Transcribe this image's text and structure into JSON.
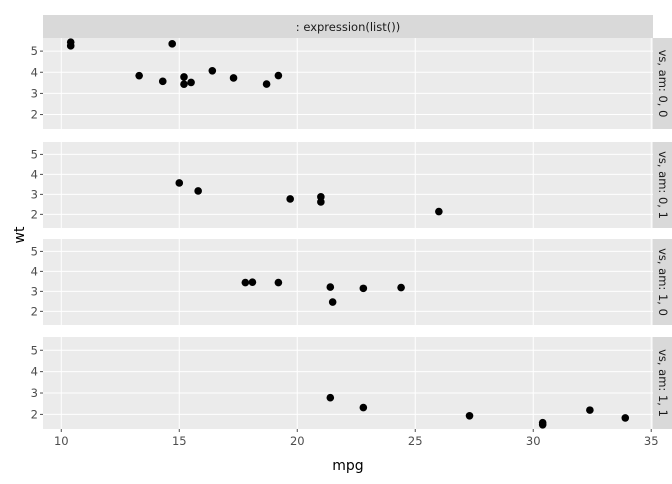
{
  "chart_data": {
    "type": "scatter",
    "title": "",
    "top_strip": ": expression(list())",
    "xlabel": "mpg",
    "ylabel": "wt",
    "xlim": [
      9.225,
      35.075
    ],
    "ylim": [
      1.317,
      5.62
    ],
    "xticks": [
      10,
      15,
      20,
      25,
      30,
      35
    ],
    "yticks": [
      2,
      3,
      4,
      5
    ],
    "grid": true,
    "point_color": "#000000",
    "panel_bg": "#EBEBEB",
    "strip_bg": "#D9D9D9",
    "panels": [
      {
        "label": "vs, am: 0, 0",
        "x": [
          18.7,
          14.3,
          16.4,
          17.3,
          15.2,
          10.4,
          10.4,
          14.7,
          15.5,
          15.2,
          13.3,
          19.2
        ],
        "y": [
          3.44,
          3.57,
          4.07,
          3.73,
          3.78,
          5.25,
          5.424,
          5.345,
          3.52,
          3.435,
          3.84,
          3.845
        ]
      },
      {
        "label": "vs, am: 0, 1",
        "x": [
          21,
          21,
          26,
          15.8,
          19.7,
          15
        ],
        "y": [
          2.62,
          2.875,
          2.14,
          3.17,
          2.77,
          3.57
        ]
      },
      {
        "label": "vs, am: 1, 0",
        "x": [
          21.4,
          18.1,
          24.4,
          22.8,
          19.2,
          17.8,
          21.5
        ],
        "y": [
          3.215,
          3.46,
          3.19,
          3.15,
          3.44,
          3.44,
          2.465
        ]
      },
      {
        "label": "vs, am: 1, 1",
        "x": [
          22.8,
          32.4,
          30.4,
          33.9,
          27.3,
          30.4,
          21.4
        ],
        "y": [
          2.32,
          2.2,
          1.615,
          1.835,
          1.935,
          1.513,
          2.78
        ]
      }
    ]
  }
}
